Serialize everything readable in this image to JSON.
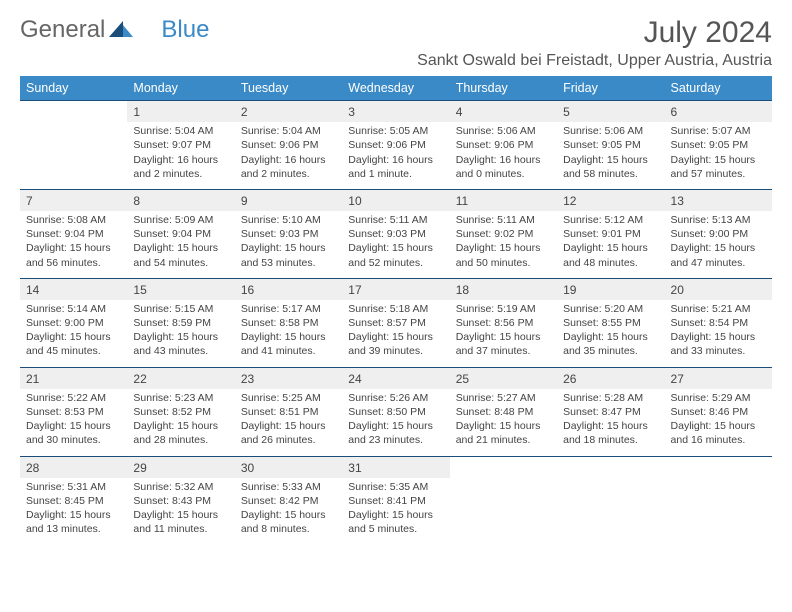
{
  "logo": {
    "text1": "General",
    "text2": "Blue"
  },
  "title": "July 2024",
  "location": "Sankt Oswald bei Freistadt, Upper Austria, Austria",
  "colors": {
    "header_bg": "#3a8ac8",
    "header_text": "#ffffff",
    "dayrow_bg": "#efefef",
    "border": "#1a4d7a",
    "text": "#444444",
    "logo_gray": "#666666",
    "logo_blue": "#3a8ac8"
  },
  "day_names": [
    "Sunday",
    "Monday",
    "Tuesday",
    "Wednesday",
    "Thursday",
    "Friday",
    "Saturday"
  ],
  "weeks": [
    {
      "nums": [
        "",
        "1",
        "2",
        "3",
        "4",
        "5",
        "6"
      ],
      "cells": [
        [],
        [
          "Sunrise: 5:04 AM",
          "Sunset: 9:07 PM",
          "Daylight: 16 hours",
          "and 2 minutes."
        ],
        [
          "Sunrise: 5:04 AM",
          "Sunset: 9:06 PM",
          "Daylight: 16 hours",
          "and 2 minutes."
        ],
        [
          "Sunrise: 5:05 AM",
          "Sunset: 9:06 PM",
          "Daylight: 16 hours",
          "and 1 minute."
        ],
        [
          "Sunrise: 5:06 AM",
          "Sunset: 9:06 PM",
          "Daylight: 16 hours",
          "and 0 minutes."
        ],
        [
          "Sunrise: 5:06 AM",
          "Sunset: 9:05 PM",
          "Daylight: 15 hours",
          "and 58 minutes."
        ],
        [
          "Sunrise: 5:07 AM",
          "Sunset: 9:05 PM",
          "Daylight: 15 hours",
          "and 57 minutes."
        ]
      ]
    },
    {
      "nums": [
        "7",
        "8",
        "9",
        "10",
        "11",
        "12",
        "13"
      ],
      "cells": [
        [
          "Sunrise: 5:08 AM",
          "Sunset: 9:04 PM",
          "Daylight: 15 hours",
          "and 56 minutes."
        ],
        [
          "Sunrise: 5:09 AM",
          "Sunset: 9:04 PM",
          "Daylight: 15 hours",
          "and 54 minutes."
        ],
        [
          "Sunrise: 5:10 AM",
          "Sunset: 9:03 PM",
          "Daylight: 15 hours",
          "and 53 minutes."
        ],
        [
          "Sunrise: 5:11 AM",
          "Sunset: 9:03 PM",
          "Daylight: 15 hours",
          "and 52 minutes."
        ],
        [
          "Sunrise: 5:11 AM",
          "Sunset: 9:02 PM",
          "Daylight: 15 hours",
          "and 50 minutes."
        ],
        [
          "Sunrise: 5:12 AM",
          "Sunset: 9:01 PM",
          "Daylight: 15 hours",
          "and 48 minutes."
        ],
        [
          "Sunrise: 5:13 AM",
          "Sunset: 9:00 PM",
          "Daylight: 15 hours",
          "and 47 minutes."
        ]
      ]
    },
    {
      "nums": [
        "14",
        "15",
        "16",
        "17",
        "18",
        "19",
        "20"
      ],
      "cells": [
        [
          "Sunrise: 5:14 AM",
          "Sunset: 9:00 PM",
          "Daylight: 15 hours",
          "and 45 minutes."
        ],
        [
          "Sunrise: 5:15 AM",
          "Sunset: 8:59 PM",
          "Daylight: 15 hours",
          "and 43 minutes."
        ],
        [
          "Sunrise: 5:17 AM",
          "Sunset: 8:58 PM",
          "Daylight: 15 hours",
          "and 41 minutes."
        ],
        [
          "Sunrise: 5:18 AM",
          "Sunset: 8:57 PM",
          "Daylight: 15 hours",
          "and 39 minutes."
        ],
        [
          "Sunrise: 5:19 AM",
          "Sunset: 8:56 PM",
          "Daylight: 15 hours",
          "and 37 minutes."
        ],
        [
          "Sunrise: 5:20 AM",
          "Sunset: 8:55 PM",
          "Daylight: 15 hours",
          "and 35 minutes."
        ],
        [
          "Sunrise: 5:21 AM",
          "Sunset: 8:54 PM",
          "Daylight: 15 hours",
          "and 33 minutes."
        ]
      ]
    },
    {
      "nums": [
        "21",
        "22",
        "23",
        "24",
        "25",
        "26",
        "27"
      ],
      "cells": [
        [
          "Sunrise: 5:22 AM",
          "Sunset: 8:53 PM",
          "Daylight: 15 hours",
          "and 30 minutes."
        ],
        [
          "Sunrise: 5:23 AM",
          "Sunset: 8:52 PM",
          "Daylight: 15 hours",
          "and 28 minutes."
        ],
        [
          "Sunrise: 5:25 AM",
          "Sunset: 8:51 PM",
          "Daylight: 15 hours",
          "and 26 minutes."
        ],
        [
          "Sunrise: 5:26 AM",
          "Sunset: 8:50 PM",
          "Daylight: 15 hours",
          "and 23 minutes."
        ],
        [
          "Sunrise: 5:27 AM",
          "Sunset: 8:48 PM",
          "Daylight: 15 hours",
          "and 21 minutes."
        ],
        [
          "Sunrise: 5:28 AM",
          "Sunset: 8:47 PM",
          "Daylight: 15 hours",
          "and 18 minutes."
        ],
        [
          "Sunrise: 5:29 AM",
          "Sunset: 8:46 PM",
          "Daylight: 15 hours",
          "and 16 minutes."
        ]
      ]
    },
    {
      "nums": [
        "28",
        "29",
        "30",
        "31",
        "",
        "",
        ""
      ],
      "cells": [
        [
          "Sunrise: 5:31 AM",
          "Sunset: 8:45 PM",
          "Daylight: 15 hours",
          "and 13 minutes."
        ],
        [
          "Sunrise: 5:32 AM",
          "Sunset: 8:43 PM",
          "Daylight: 15 hours",
          "and 11 minutes."
        ],
        [
          "Sunrise: 5:33 AM",
          "Sunset: 8:42 PM",
          "Daylight: 15 hours",
          "and 8 minutes."
        ],
        [
          "Sunrise: 5:35 AM",
          "Sunset: 8:41 PM",
          "Daylight: 15 hours",
          "and 5 minutes."
        ],
        [],
        [],
        []
      ]
    }
  ]
}
